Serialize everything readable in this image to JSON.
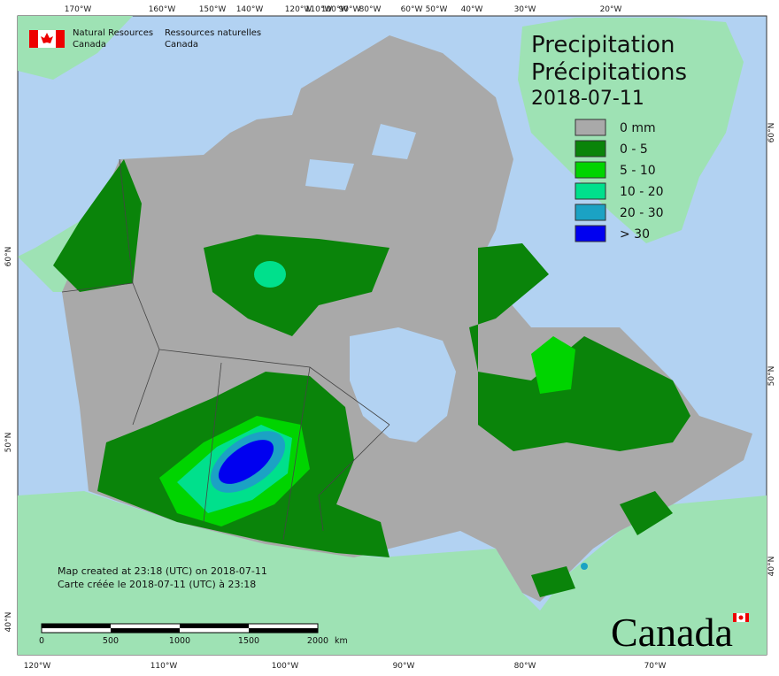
{
  "header": {
    "agency_en": [
      "Natural Resources",
      "Canada"
    ],
    "agency_fr": [
      "Ressources naturelles",
      "Canada"
    ]
  },
  "title": {
    "lines": [
      "Precipitation",
      "Précipitations"
    ],
    "date": "2018-07-11"
  },
  "legend": {
    "items": [
      {
        "label": "0 mm",
        "color": "#a9a9a9"
      },
      {
        "label": "0 - 5",
        "color": "#0a840a"
      },
      {
        "label": "5 - 10",
        "color": "#00d400"
      },
      {
        "label": "10 - 20",
        "color": "#00e08c"
      },
      {
        "label": "20 - 30",
        "color": "#1ba2c4"
      },
      {
        "label": "> 30",
        "color": "#0000f0"
      }
    ]
  },
  "notes": [
    "Map created at 23:18 (UTC) on 2018-07-11",
    "Carte créée le 2018-07-11 (UTC) à 23:18"
  ],
  "scale_bar": {
    "labels": [
      "0",
      "500",
      "1000",
      "1500",
      "2000"
    ],
    "unit": "km"
  },
  "graticule": {
    "top": [
      "170°W",
      "160°W",
      "150°W",
      "140°W",
      "120°W",
      "110°W",
      "100°W",
      "90°W",
      "80°W",
      "60°W",
      "50°W",
      "40°W",
      "30°W",
      "20°W"
    ],
    "bottom": [
      "120°W",
      "110°W",
      "100°W",
      "90°W",
      "80°W",
      "70°W"
    ],
    "left": [
      "60°N",
      "50°N",
      "40°N"
    ],
    "right": [
      "60°N",
      "50°N",
      "40°N"
    ]
  },
  "wordmark": "Canada"
}
